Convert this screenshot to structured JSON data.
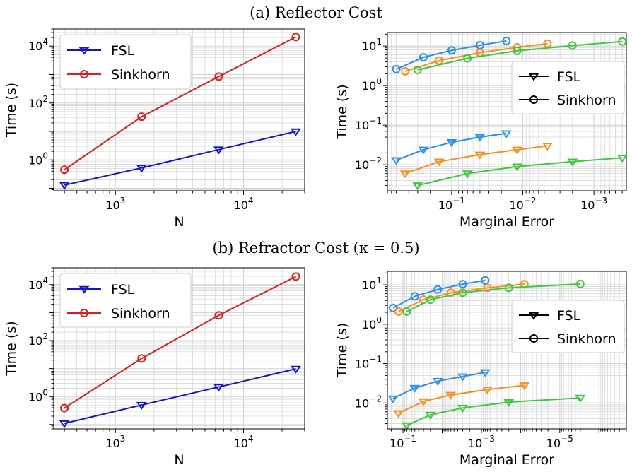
{
  "headings": {
    "reflector": "(a) Reflector Cost",
    "refractor": "(b) Refractor Cost (κ = 0.5)"
  },
  "colors": {
    "fsl": "#1515cc",
    "sinkhorn": "#dd1c1c",
    "blue": "#2b8ff0",
    "orange": "#ff8c1a",
    "green": "#3cc83c",
    "grid": "#d4d4d4"
  },
  "chart_data": [
    {
      "panel": "a-left",
      "type": "line",
      "xscale": "log",
      "yscale": "log",
      "xlabel": "N",
      "ylabel": "Time (s)",
      "xlim": [
        330,
        30000
      ],
      "ylim": [
        0.082,
        40000
      ],
      "xticks": [
        {
          "v": 1000,
          "label": "10^3"
        },
        {
          "v": 10000,
          "label": "10^4"
        }
      ],
      "yticks": [
        {
          "v": 1,
          "label": "10^0"
        },
        {
          "v": 100,
          "label": "10^2"
        },
        {
          "v": 10000,
          "label": "10^4"
        }
      ],
      "legend": "top-left",
      "series": [
        {
          "name": "FSL",
          "color_key": "fsl",
          "marker": "triangle-down",
          "x": [
            400,
            1600,
            6400,
            25600
          ],
          "y": [
            0.13,
            0.52,
            2.3,
            10.0
          ]
        },
        {
          "name": "Sinkhorn",
          "color_key": "sinkhorn",
          "marker": "circle",
          "x": [
            400,
            1600,
            6400,
            25600
          ],
          "y": [
            0.45,
            33,
            850,
            21000
          ]
        }
      ]
    },
    {
      "panel": "a-right",
      "type": "line",
      "xscale": "log",
      "yscale": "log",
      "xinverted": true,
      "xlabel": "Marginal Error",
      "ylabel": "Time (s)",
      "xlim": [
        0.8,
        0.00035
      ],
      "ylim": [
        0.0022,
        22
      ],
      "xticks": [
        {
          "v": 0.1,
          "label": "10^-1"
        },
        {
          "v": 0.01,
          "label": "10^-2"
        },
        {
          "v": 0.001,
          "label": "10^-3"
        }
      ],
      "yticks": [
        {
          "v": 0.01,
          "label": "10^-2"
        },
        {
          "v": 0.1,
          "label": "10^-1"
        },
        {
          "v": 1,
          "label": "10^0"
        },
        {
          "v": 10,
          "label": "10^1"
        }
      ],
      "legend": "center-right",
      "legend_entries": [
        {
          "name": "FSL",
          "marker": "triangle-down"
        },
        {
          "name": "Sinkhorn",
          "marker": "circle"
        }
      ],
      "series": [
        {
          "color_key": "blue",
          "marker": "circle",
          "x": [
            0.6,
            0.25,
            0.1,
            0.04,
            0.017
          ],
          "y": [
            2.6,
            5.2,
            7.8,
            10.5,
            13.5
          ]
        },
        {
          "color_key": "orange",
          "marker": "circle",
          "x": [
            0.45,
            0.15,
            0.04,
            0.012,
            0.0045
          ],
          "y": [
            2.3,
            4.3,
            6.8,
            9.3,
            11.5
          ]
        },
        {
          "color_key": "green",
          "marker": "circle",
          "x": [
            0.3,
            0.06,
            0.012,
            0.002,
            0.0004
          ],
          "y": [
            2.5,
            4.9,
            7.6,
            10.3,
            13.0
          ]
        },
        {
          "color_key": "blue",
          "marker": "triangle-down",
          "x": [
            0.6,
            0.25,
            0.1,
            0.04,
            0.017
          ],
          "y": [
            0.013,
            0.024,
            0.037,
            0.05,
            0.062
          ]
        },
        {
          "color_key": "orange",
          "marker": "triangle-down",
          "x": [
            0.45,
            0.15,
            0.04,
            0.012,
            0.0045
          ],
          "y": [
            0.006,
            0.012,
            0.018,
            0.024,
            0.03
          ]
        },
        {
          "color_key": "green",
          "marker": "triangle-down",
          "x": [
            0.3,
            0.06,
            0.012,
            0.002,
            0.0004
          ],
          "y": [
            0.003,
            0.006,
            0.009,
            0.012,
            0.015
          ]
        }
      ]
    },
    {
      "panel": "b-left",
      "type": "line",
      "xscale": "log",
      "yscale": "log",
      "xlabel": "N",
      "ylabel": "Time (s)",
      "xlim": [
        330,
        30000
      ],
      "ylim": [
        0.07,
        40000
      ],
      "xticks": [
        {
          "v": 1000,
          "label": "10^3"
        },
        {
          "v": 10000,
          "label": "10^4"
        }
      ],
      "yticks": [
        {
          "v": 1,
          "label": "10^0"
        },
        {
          "v": 100,
          "label": "10^2"
        },
        {
          "v": 10000,
          "label": "10^4"
        }
      ],
      "legend": "top-left",
      "series": [
        {
          "name": "FSL",
          "color_key": "fsl",
          "marker": "triangle-down",
          "x": [
            400,
            1600,
            6400,
            25600
          ],
          "y": [
            0.11,
            0.5,
            2.2,
            9.8
          ]
        },
        {
          "name": "Sinkhorn",
          "color_key": "sinkhorn",
          "marker": "circle",
          "x": [
            400,
            1600,
            6400,
            25600
          ],
          "y": [
            0.39,
            23,
            800,
            19500
          ]
        }
      ]
    },
    {
      "panel": "b-right",
      "type": "line",
      "xscale": "log",
      "yscale": "log",
      "xinverted": true,
      "xlabel": "Marginal Error",
      "ylabel": "Time (s)",
      "xlim": [
        0.25,
        2e-07
      ],
      "ylim": [
        0.0022,
        22
      ],
      "xticks": [
        {
          "v": 0.1,
          "label": "10^-1"
        },
        {
          "v": 0.001,
          "label": "10^-3"
        },
        {
          "v": 1e-05,
          "label": "10^-5"
        }
      ],
      "yticks": [
        {
          "v": 0.01,
          "label": "10^-2"
        },
        {
          "v": 0.1,
          "label": "10^-1"
        },
        {
          "v": 1,
          "label": "10^0"
        },
        {
          "v": 10,
          "label": "10^1"
        }
      ],
      "legend": "center-right",
      "legend_entries": [
        {
          "name": "FSL",
          "marker": "triangle-down"
        },
        {
          "name": "Sinkhorn",
          "marker": "circle"
        }
      ],
      "series": [
        {
          "color_key": "blue",
          "marker": "circle",
          "x": [
            0.18,
            0.05,
            0.013,
            0.003,
            0.0008
          ],
          "y": [
            2.6,
            5.1,
            7.6,
            10.4,
            13.0
          ]
        },
        {
          "color_key": "orange",
          "marker": "circle",
          "x": [
            0.13,
            0.03,
            0.006,
            0.0007,
            8e-05
          ],
          "y": [
            2.1,
            4.2,
            6.3,
            8.4,
            10.4
          ]
        },
        {
          "color_key": "green",
          "marker": "circle",
          "x": [
            0.08,
            0.02,
            0.003,
            0.0002,
            3e-06
          ],
          "y": [
            2.1,
            4.2,
            6.3,
            8.4,
            10.5
          ]
        },
        {
          "color_key": "blue",
          "marker": "triangle-down",
          "x": [
            0.18,
            0.05,
            0.013,
            0.003,
            0.0008
          ],
          "y": [
            0.013,
            0.024,
            0.036,
            0.047,
            0.06
          ]
        },
        {
          "color_key": "orange",
          "marker": "triangle-down",
          "x": [
            0.13,
            0.03,
            0.006,
            0.0007,
            8e-05
          ],
          "y": [
            0.0055,
            0.011,
            0.016,
            0.022,
            0.028
          ]
        },
        {
          "color_key": "green",
          "marker": "triangle-down",
          "x": [
            0.08,
            0.02,
            0.003,
            0.0002,
            3e-06
          ],
          "y": [
            0.0027,
            0.005,
            0.0075,
            0.0105,
            0.0135
          ]
        }
      ]
    }
  ]
}
